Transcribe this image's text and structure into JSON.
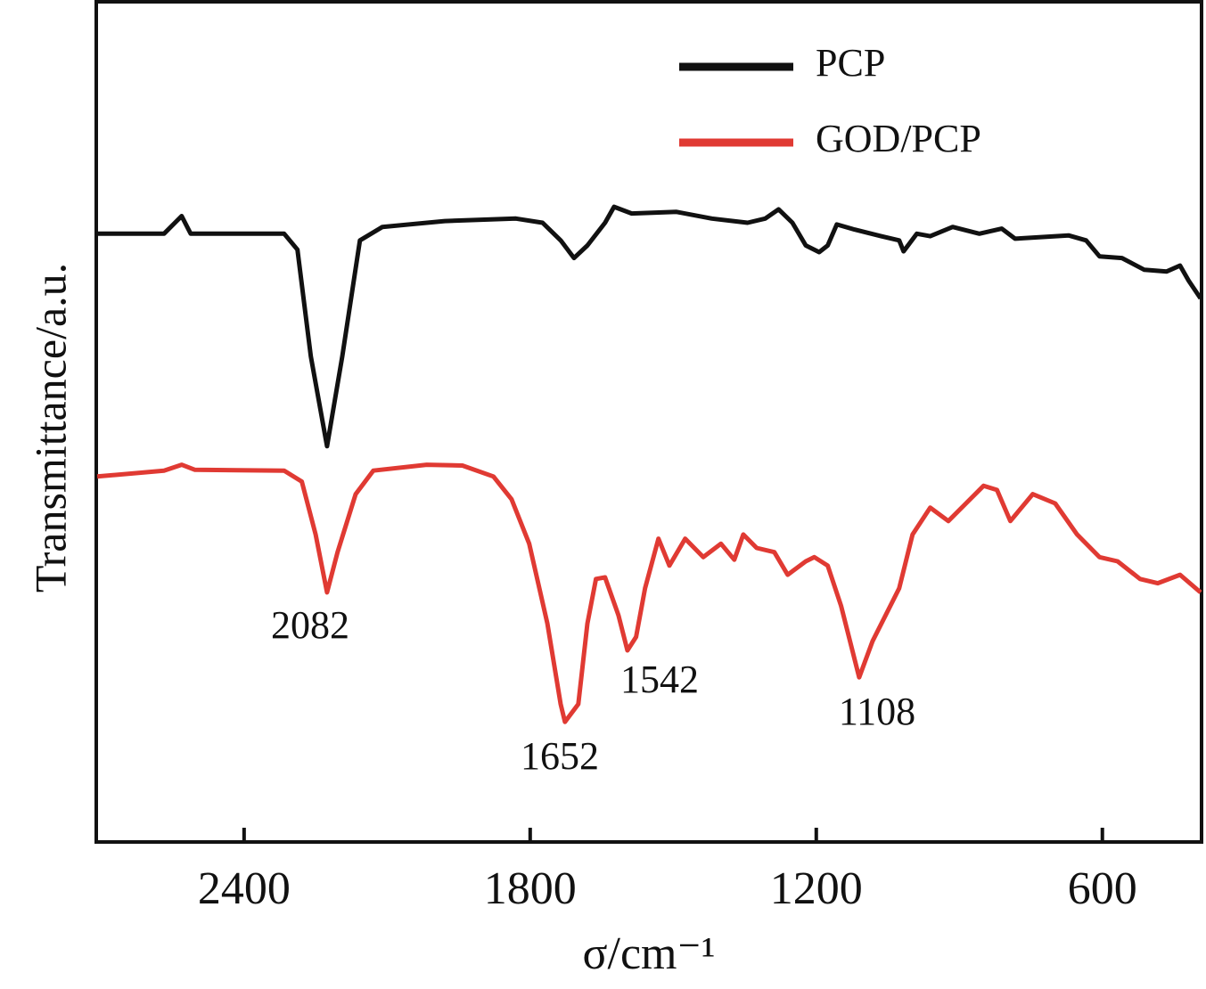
{
  "chart_data": {
    "type": "line",
    "xlabel": "σ/cm⁻¹",
    "ylabel": "Transmittance/a.u.",
    "xlim": [
      2710,
      392
    ],
    "xticks": [
      2400,
      1800,
      1200,
      600
    ],
    "ylim": [
      0,
      100
    ],
    "legend": "upper right",
    "annotations": [
      "2082",
      "1652",
      "1542",
      "1108"
    ],
    "series": [
      {
        "name": "PCP",
        "color": "#111111",
        "x": [
          2708,
          2568,
          2531,
          2512,
          2316,
          2288,
          2260,
          2226,
          2194,
          2157,
          2110,
          1979,
          1830,
          1774,
          1736,
          1708,
          1680,
          1643,
          1624,
          1587,
          1493,
          1419,
          1344,
          1307,
          1279,
          1250,
          1222,
          1194,
          1176,
          1157,
          1120,
          1064,
          1026,
          1017,
          989,
          961,
          914,
          858,
          811,
          783,
          671,
          634,
          606,
          559,
          512,
          465,
          437,
          419,
          394
        ],
        "values": [
          72.4,
          72.4,
          74.5,
          72.4,
          72.4,
          70.5,
          57.8,
          47.1,
          57.8,
          71.6,
          73.2,
          73.9,
          74.2,
          73.7,
          71.6,
          69.5,
          71.0,
          73.7,
          75.6,
          74.8,
          75.0,
          74.2,
          73.7,
          74.2,
          75.3,
          73.7,
          71.0,
          70.2,
          71.0,
          73.5,
          72.9,
          72.1,
          71.6,
          70.3,
          72.4,
          72.1,
          73.2,
          72.4,
          73.0,
          71.8,
          72.2,
          71.6,
          69.7,
          69.5,
          68.1,
          67.9,
          68.6,
          66.8,
          64.7
        ]
      },
      {
        "name": "GOD/PCP",
        "color": "#e03a33",
        "x": [
          2708,
          2568,
          2531,
          2503,
          2316,
          2279,
          2250,
          2226,
          2204,
          2166,
          2129,
          2017,
          1942,
          1877,
          1839,
          1802,
          1764,
          1736,
          1727,
          1699,
          1680,
          1662,
          1643,
          1615,
          1596,
          1578,
          1559,
          1531,
          1508,
          1475,
          1437,
          1400,
          1372,
          1353,
          1325,
          1288,
          1260,
          1222,
          1204,
          1176,
          1148,
          1110,
          1082,
          1026,
          998,
          961,
          923,
          886,
          849,
          821,
          793,
          746,
          699,
          653,
          606,
          568,
          521,
          484,
          437,
          394
        ],
        "values": [
          43.5,
          44.2,
          44.9,
          44.3,
          44.2,
          42.9,
          36.6,
          29.7,
          34.5,
          41.4,
          44.2,
          44.9,
          44.8,
          43.5,
          40.8,
          35.5,
          26.0,
          16.4,
          14.3,
          16.4,
          26.0,
          31.3,
          31.5,
          27.0,
          22.8,
          24.4,
          30.2,
          36.1,
          32.9,
          36.1,
          33.9,
          35.5,
          33.6,
          36.6,
          35.0,
          34.5,
          31.8,
          33.4,
          33.9,
          32.9,
          28.1,
          19.6,
          23.9,
          30.2,
          36.6,
          39.8,
          38.2,
          40.3,
          42.4,
          41.9,
          38.2,
          41.4,
          40.3,
          36.6,
          33.9,
          33.4,
          31.3,
          30.8,
          31.8,
          29.7
        ]
      }
    ]
  }
}
